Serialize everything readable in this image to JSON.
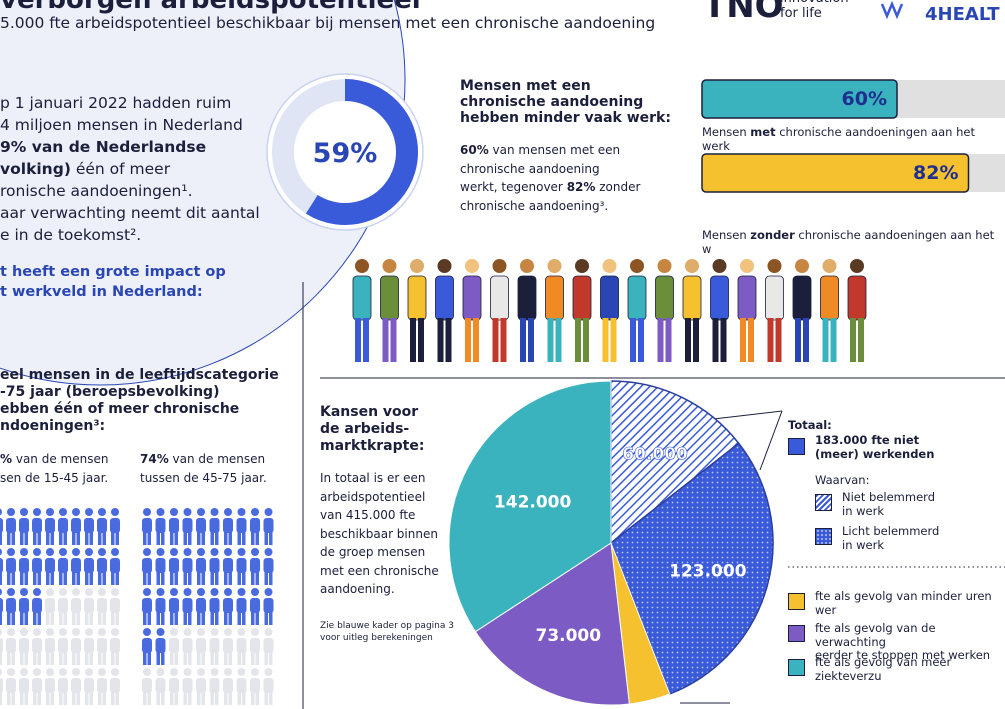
{
  "header": {
    "title": "verborgen arbeidspotentieel",
    "subtitle": "5.000 fte arbeidspotentieel beschikbaar bij mensen met een chronische aandoening",
    "logo_tno": "TNO",
    "logo_tagline": "innovation\nfor life",
    "logo_partner": "4HEALT"
  },
  "intro": {
    "text": [
      "p 1 januari 2022 hadden ruim\n4 miljoen mensen in Nederland\n",
      {
        "bold": "9% van de Nederlandse\nvolking)"
      },
      " één of meer\nronische aandoeningen¹.\naar verwachting neemt dit aantal\ne in de toekomst²."
    ],
    "impact": "t heeft een grote impact op\nt werkveld in Nederland:"
  },
  "work": {
    "heading": "Mensen met een\nchronische aandoening\nhebben minder vaak werk:",
    "text": [
      {
        "bold": "60%"
      },
      " van mensen met een\nchronische aandoening\nwerkt, tegenover ",
      {
        "bold": "82%"
      },
      " zonder\nchronische aandoening³."
    ],
    "captions": [
      [
        "Mensen ",
        {
          "bold": "met"
        },
        " chronische aandoeningen aan het werk"
      ],
      [
        "Mensen ",
        {
          "bold": "zonder"
        },
        " chronische aandoeningen aan het w"
      ]
    ]
  },
  "age_groups": {
    "heading": "eel mensen in de leeftijdscategorie\n-75 jaar (beroepsbevolking)\nebben één of meer chronische\nndoeningen³:",
    "young": [
      {
        "bold": "%"
      },
      " van de mensen\nsen de 15-45 jaar."
    ],
    "old": [
      {
        "bold": "74%"
      },
      " van de mensen\ntussen de 45-75 jaar."
    ]
  },
  "opportunities": {
    "heading": "Kansen voor\nde arbeids-\nmarktkrapte:",
    "text": "In totaal is er een\narbeidspotentieel\nvan 415.000 fte\nbeschikbaar binnen\nde groep mensen\nmet een chronische\naandoening.",
    "note": "Zie blauwe kader op pagina 3\nvoor uitleg berekeningen"
  },
  "pie_legend": {
    "total_heading": "Totaal:",
    "total": "183.000 fte niet\n(meer) werkenden",
    "of_which": "Waarvan:"
  },
  "chart_data": [
    {
      "type": "donut",
      "values": [
        59
      ],
      "value_labels": [
        "59%"
      ],
      "color": "#3a5bd9"
    },
    {
      "type": "bar",
      "values": [
        60,
        82
      ],
      "value_labels": [
        "60%",
        "82%"
      ],
      "colors": [
        "#3bb3bf",
        "#f6c12e"
      ],
      "xlim": [
        0,
        100
      ]
    },
    {
      "type": "pie",
      "categories": [
        "Niet belemmerd\nin werk",
        "Licht belemmerd\nin werk",
        "fte als gevolg van minder uren wer",
        "fte als gevolg van de verwachting\neerder te stoppen met werken",
        "fte als gevolg van meer ziekteverzu"
      ],
      "values": [
        60000,
        123000,
        17000,
        73000,
        142000
      ],
      "value_labels": [
        "60.000",
        "123.000",
        null,
        "73.000",
        "142.000"
      ],
      "colors": [
        "#3a5bd9",
        "#3a5bd9",
        "#f6c12e",
        "#7c5cc4",
        "#3bb3bf"
      ],
      "patterns": [
        "hatch",
        "dots",
        null,
        null,
        null
      ]
    }
  ]
}
